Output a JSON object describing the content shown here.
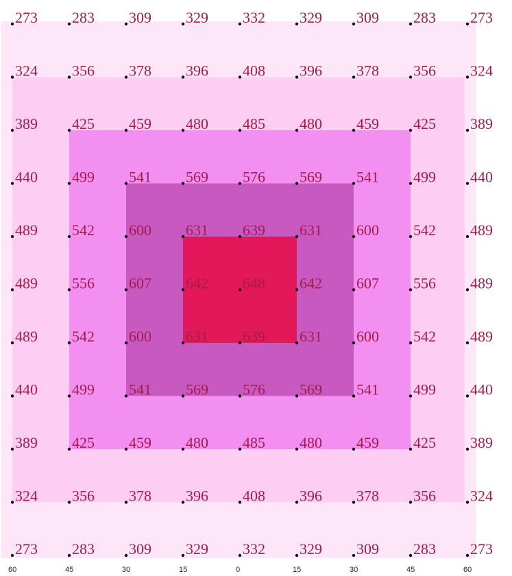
{
  "chart_data": {
    "type": "heatmap",
    "title": "",
    "xlabel": "",
    "ylabel": "",
    "x_tick_labels": [
      "60",
      "45",
      "30",
      "15",
      "0",
      "15",
      "30",
      "45",
      "60"
    ],
    "grid": false,
    "zones": [
      {
        "level": 1,
        "color": "#fde6f8"
      },
      {
        "level": 2,
        "color": "#fdcdf3"
      },
      {
        "level": 3,
        "color": "#f38ff0"
      },
      {
        "level": 4,
        "color": "#c859c1"
      },
      {
        "level": 5,
        "color": "#e3185b"
      }
    ],
    "values": [
      [
        273,
        283,
        309,
        329,
        332,
        329,
        309,
        283,
        273
      ],
      [
        324,
        356,
        378,
        396,
        408,
        396,
        378,
        356,
        324
      ],
      [
        389,
        425,
        459,
        480,
        485,
        480,
        459,
        425,
        389
      ],
      [
        440,
        499,
        541,
        569,
        576,
        569,
        541,
        499,
        440
      ],
      [
        489,
        542,
        600,
        631,
        639,
        631,
        600,
        542,
        489
      ],
      [
        489,
        556,
        607,
        642,
        648,
        642,
        607,
        556,
        489
      ],
      [
        489,
        542,
        600,
        631,
        639,
        631,
        600,
        542,
        489
      ],
      [
        440,
        499,
        541,
        569,
        576,
        569,
        541,
        499,
        440
      ],
      [
        389,
        425,
        459,
        480,
        485,
        480,
        459,
        425,
        389
      ],
      [
        324,
        356,
        378,
        396,
        408,
        396,
        378,
        356,
        324
      ],
      [
        273,
        283,
        309,
        329,
        332,
        329,
        309,
        283,
        273
      ]
    ],
    "marker_color": "#111111",
    "value_label_color": "#a31c4a"
  }
}
